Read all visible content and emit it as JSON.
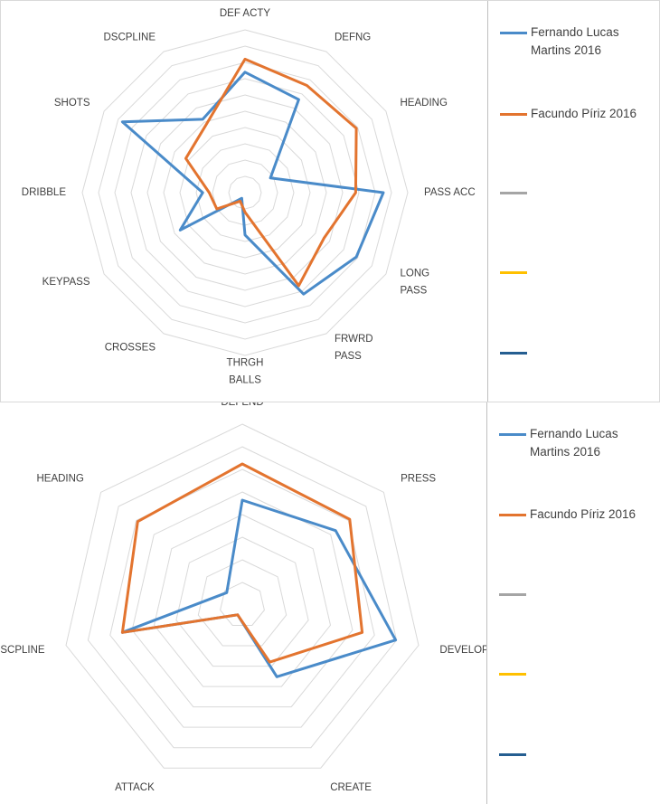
{
  "colors": {
    "series_blue": "#4a8bc9",
    "series_orange": "#e3742f",
    "legend_gray": "#a5a5a5",
    "legend_yellow": "#ffc000",
    "legend_darkblue": "#255e91",
    "grid": "#d9d9d9"
  },
  "chart_data": [
    {
      "type": "radar",
      "categories": [
        "DEF ACTY",
        "DEFNG",
        "HEADING",
        "PASS ACC",
        "LONG PASS",
        "FRWRD PASS",
        "THRGH BALLS",
        "CROSSES",
        "KEYPASS",
        "DRIBBLE",
        "SHOTS",
        "DSCPLINE"
      ],
      "rlim": [
        0,
        10
      ],
      "grid_rings": 10,
      "series": [
        {
          "name": "Fernando Lucas Martins 2016",
          "color": "blue",
          "values": [
            7.4,
            6.6,
            1.8,
            8.5,
            7.9,
            7.2,
            2.6,
            0.4,
            4.6,
            2.6,
            8.7,
            5.2
          ]
        },
        {
          "name": "Facundo Píriz 2016",
          "color": "orange",
          "values": [
            8.2,
            7.6,
            7.9,
            6.8,
            5.6,
            6.6,
            1.2,
            0.6,
            2.0,
            2.2,
            4.2,
            4.8
          ]
        }
      ],
      "legend": [
        {
          "label": "Fernando Lucas Martins 2016",
          "color": "blue"
        },
        {
          "label": "Facundo Píriz 2016",
          "color": "orange"
        },
        {
          "label": "",
          "color": "gray"
        },
        {
          "label": "",
          "color": "yellow"
        },
        {
          "label": "",
          "color": "darkblue"
        }
      ],
      "legend_position": "right"
    },
    {
      "type": "radar",
      "categories": [
        "DEFEND",
        "PRESS",
        "DEVELOP",
        "CREATE",
        "ATTACK",
        "DSCPLINE",
        "HEADING"
      ],
      "rlim": [
        0,
        10
      ],
      "grid_rings": 8,
      "series": [
        {
          "name": "Fernando Lucas Martins 2016",
          "color": "blue",
          "values": [
            5.8,
            6.6,
            8.7,
            4.4,
            0.6,
            6.8,
            1.1
          ]
        },
        {
          "name": "Facundo Píriz 2016",
          "color": "orange",
          "values": [
            7.8,
            7.6,
            6.8,
            3.5,
            0.6,
            6.8,
            7.4
          ]
        }
      ],
      "legend": [
        {
          "label": "Fernando Lucas Martins 2016",
          "color": "blue"
        },
        {
          "label": "Facundo Píriz 2016",
          "color": "orange"
        },
        {
          "label": "",
          "color": "gray"
        },
        {
          "label": "",
          "color": "yellow"
        },
        {
          "label": "",
          "color": "darkblue"
        }
      ],
      "legend_position": "right"
    }
  ]
}
